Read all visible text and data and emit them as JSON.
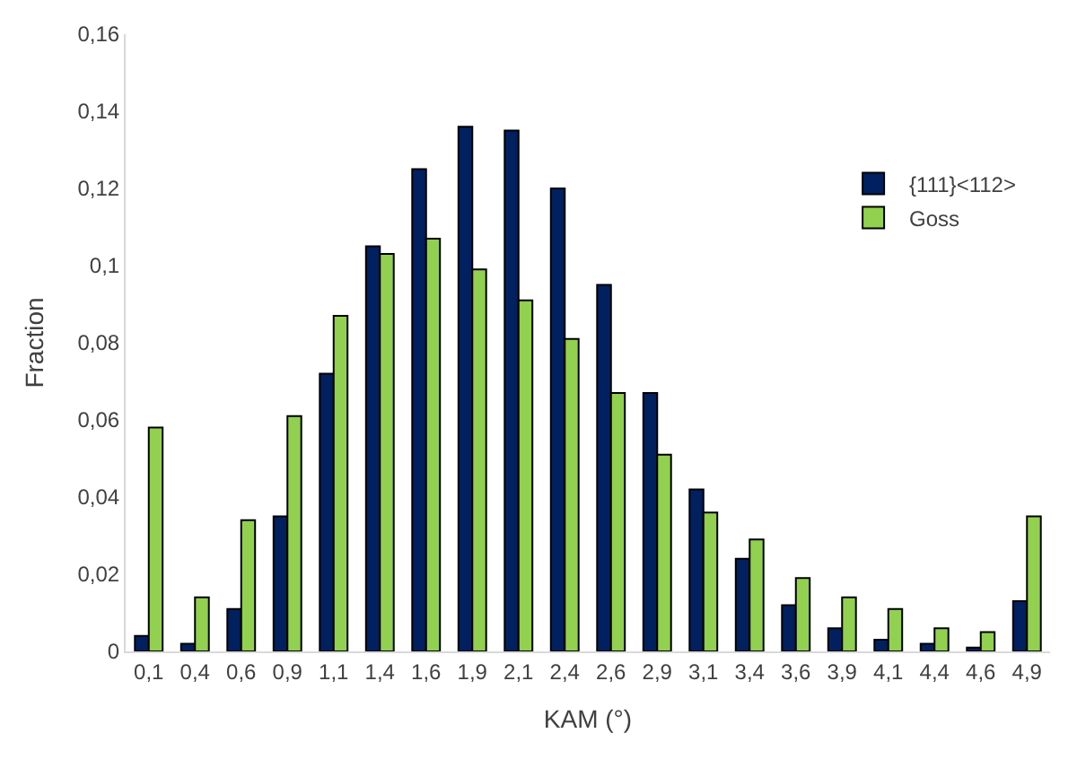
{
  "chart_data": {
    "type": "bar",
    "xlabel": "KAM (°)",
    "ylabel": "Fraction",
    "categories": [
      "0,1",
      "0,4",
      "0,6",
      "0,9",
      "1,1",
      "1,4",
      "1,6",
      "1,9",
      "2,1",
      "2,4",
      "2,6",
      "2,9",
      "3,1",
      "3,4",
      "3,6",
      "3,9",
      "4,1",
      "4,4",
      "4,6",
      "4,9"
    ],
    "series": [
      {
        "name": "{111}<112>",
        "color": "#002060",
        "values": [
          0.004,
          0.002,
          0.011,
          0.035,
          0.072,
          0.105,
          0.125,
          0.136,
          0.135,
          0.12,
          0.095,
          0.067,
          0.042,
          0.024,
          0.012,
          0.006,
          0.003,
          0.002,
          0.001,
          0.013
        ]
      },
      {
        "name": "Goss",
        "color": "#92d050",
        "values": [
          0.058,
          0.014,
          0.034,
          0.061,
          0.087,
          0.103,
          0.107,
          0.099,
          0.091,
          0.081,
          0.067,
          0.051,
          0.036,
          0.029,
          0.019,
          0.014,
          0.011,
          0.006,
          0.005,
          0.035
        ]
      }
    ],
    "ylim": [
      0,
      0.16
    ],
    "yticks": [
      {
        "value": 0,
        "label": "0"
      },
      {
        "value": 0.02,
        "label": "0,02"
      },
      {
        "value": 0.04,
        "label": "0,04"
      },
      {
        "value": 0.06,
        "label": "0,06"
      },
      {
        "value": 0.08,
        "label": "0,08"
      },
      {
        "value": 0.1,
        "label": "0,1"
      },
      {
        "value": 0.12,
        "label": "0,12"
      },
      {
        "value": 0.14,
        "label": "0,14"
      },
      {
        "value": 0.16,
        "label": "0,16"
      }
    ],
    "legend": "top right"
  }
}
